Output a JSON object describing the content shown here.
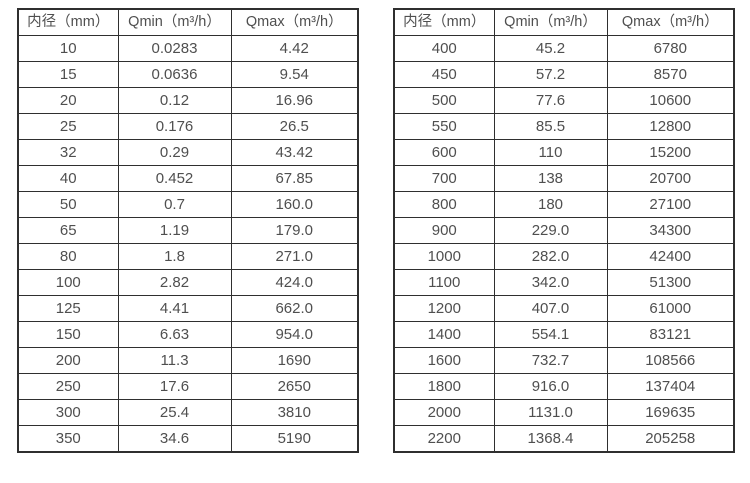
{
  "colors": {
    "border": "#2f2f2f",
    "text": "#4f4f4f",
    "background": "#ffffff"
  },
  "tables": [
    {
      "headers": [
        "内径（mm）",
        "Qmin（m³/h）",
        "Qmax（m³/h）"
      ],
      "rows": [
        [
          "10",
          "0.0283",
          "4.42"
        ],
        [
          "15",
          "0.0636",
          "9.54"
        ],
        [
          "20",
          "0.12",
          "16.96"
        ],
        [
          "25",
          "0.176",
          "26.5"
        ],
        [
          "32",
          "0.29",
          "43.42"
        ],
        [
          "40",
          "0.452",
          "67.85"
        ],
        [
          "50",
          "0.7",
          "160.0"
        ],
        [
          "65",
          "1.19",
          "179.0"
        ],
        [
          "80",
          "1.8",
          "271.0"
        ],
        [
          "100",
          "2.82",
          "424.0"
        ],
        [
          "125",
          "4.41",
          "662.0"
        ],
        [
          "150",
          "6.63",
          "954.0"
        ],
        [
          "200",
          "11.3",
          "1690"
        ],
        [
          "250",
          "17.6",
          "2650"
        ],
        [
          "300",
          "25.4",
          "3810"
        ],
        [
          "350",
          "34.6",
          "5190"
        ]
      ]
    },
    {
      "headers": [
        "内径（mm）",
        "Qmin（m³/h）",
        "Qmax（m³/h）"
      ],
      "rows": [
        [
          "400",
          "45.2",
          "6780"
        ],
        [
          "450",
          "57.2",
          "8570"
        ],
        [
          "500",
          "77.6",
          "10600"
        ],
        [
          "550",
          "85.5",
          "12800"
        ],
        [
          "600",
          "110",
          "15200"
        ],
        [
          "700",
          "138",
          "20700"
        ],
        [
          "800",
          "180",
          "27100"
        ],
        [
          "900",
          "229.0",
          "34300"
        ],
        [
          "1000",
          "282.0",
          "42400"
        ],
        [
          "1100",
          "342.0",
          "51300"
        ],
        [
          "1200",
          "407.0",
          "61000"
        ],
        [
          "1400",
          "554.1",
          "83121"
        ],
        [
          "1600",
          "732.7",
          "108566"
        ],
        [
          "1800",
          "916.0",
          "137404"
        ],
        [
          "2000",
          "1131.0",
          "169635"
        ],
        [
          "2200",
          "1368.4",
          "205258"
        ]
      ]
    }
  ]
}
